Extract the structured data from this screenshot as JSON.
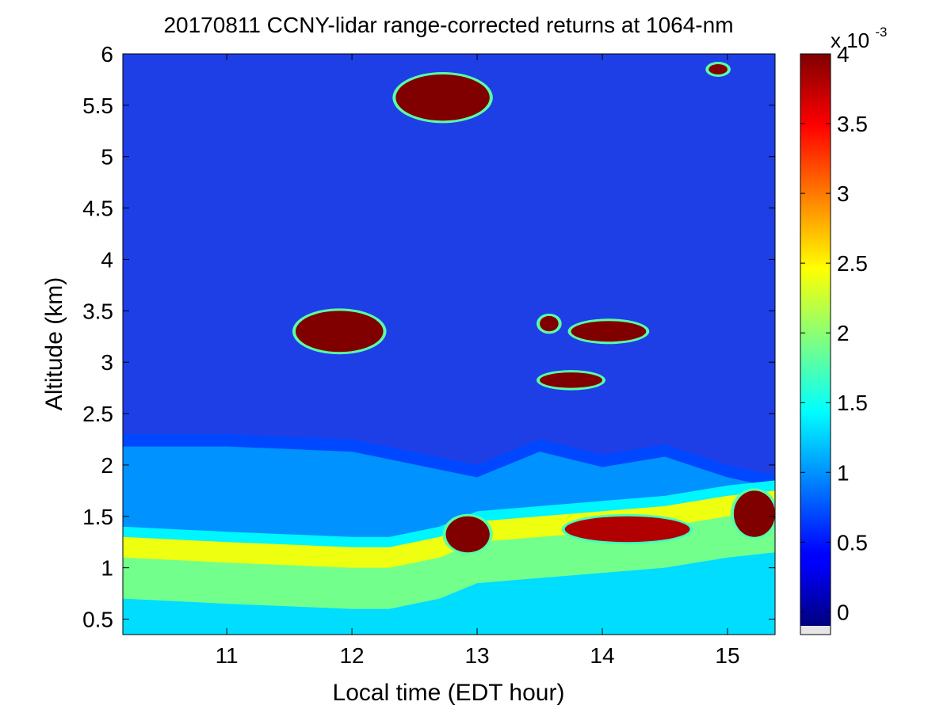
{
  "chart_data": {
    "type": "heatmap",
    "title": "20170811 CCNY-lidar range-corrected returns at 1064-nm",
    "xlabel": "Local time (EDT hour)",
    "ylabel": "Altitude (km)",
    "xlim": [
      10.17,
      15.38
    ],
    "ylim": [
      0.35,
      6.0
    ],
    "x_ticks": [
      "11",
      "12",
      "13",
      "14",
      "15"
    ],
    "x_tick_values": [
      11,
      12,
      13,
      14,
      15
    ],
    "y_ticks": [
      "0.5",
      "1",
      "1.5",
      "2",
      "2.5",
      "3",
      "3.5",
      "4",
      "4.5",
      "5",
      "5.5",
      "6"
    ],
    "y_tick_values": [
      0.5,
      1,
      1.5,
      2,
      2.5,
      3,
      3.5,
      4,
      4.5,
      5,
      5.5,
      6
    ],
    "colorbar": {
      "range": [
        -0.0001,
        0.004
      ],
      "ticks": [
        "0",
        "0.5",
        "1",
        "1.5",
        "2",
        "2.5",
        "3",
        "3.5",
        "4"
      ],
      "tick_values": [
        0,
        0.0005,
        0.001,
        0.0015,
        0.002,
        0.0025,
        0.003,
        0.0035,
        0.004
      ],
      "exponent_base": "x 10",
      "exponent_power": "-3",
      "colormap": "jet"
    },
    "features": [
      {
        "name": "cirrus-cloud",
        "x": [
          12.35,
          13.1
        ],
        "y": [
          5.35,
          5.8
        ],
        "value": 0.004
      },
      {
        "name": "cirrus-cloud-small",
        "x": [
          14.85,
          15.0
        ],
        "y": [
          5.8,
          5.9
        ],
        "value": 0.004
      },
      {
        "name": "mid-cloud",
        "x": [
          11.55,
          12.25
        ],
        "y": [
          3.1,
          3.5
        ],
        "value": 0.004
      },
      {
        "name": "mid-cloud",
        "x": [
          13.75,
          14.35
        ],
        "y": [
          3.2,
          3.4
        ],
        "value": 0.004
      },
      {
        "name": "mid-cloud",
        "x": [
          13.5,
          13.65
        ],
        "y": [
          3.3,
          3.45
        ],
        "value": 0.004
      },
      {
        "name": "low-cloud",
        "x": [
          13.5,
          14.0
        ],
        "y": [
          2.75,
          2.9
        ],
        "value": 0.004
      },
      {
        "name": "boundary-layer-cloud",
        "x": [
          12.75,
          13.1
        ],
        "y": [
          1.15,
          1.5
        ],
        "value": 0.004
      },
      {
        "name": "boundary-layer-cloud",
        "x": [
          13.7,
          14.7
        ],
        "y": [
          1.25,
          1.5
        ],
        "value": 0.0038
      },
      {
        "name": "boundary-layer-cloud",
        "x": [
          15.05,
          15.38
        ],
        "y": [
          1.3,
          1.75
        ],
        "value": 0.004
      }
    ],
    "boundary_layer_top_km": {
      "x": [
        10.17,
        11.0,
        12.0,
        12.3,
        12.7,
        13.0,
        13.5,
        14.0,
        14.5,
        15.0,
        15.38
      ],
      "y": [
        1.3,
        1.25,
        1.2,
        1.2,
        1.3,
        1.45,
        1.5,
        1.55,
        1.6,
        1.7,
        1.75
      ]
    },
    "residual_layer_top_km": {
      "x": [
        10.17,
        11.0,
        12.0,
        13.0,
        13.5,
        14.0,
        14.5,
        15.0,
        15.38
      ],
      "y": [
        2.3,
        2.3,
        2.25,
        2.0,
        2.25,
        2.1,
        2.2,
        2.0,
        1.9
      ]
    }
  }
}
